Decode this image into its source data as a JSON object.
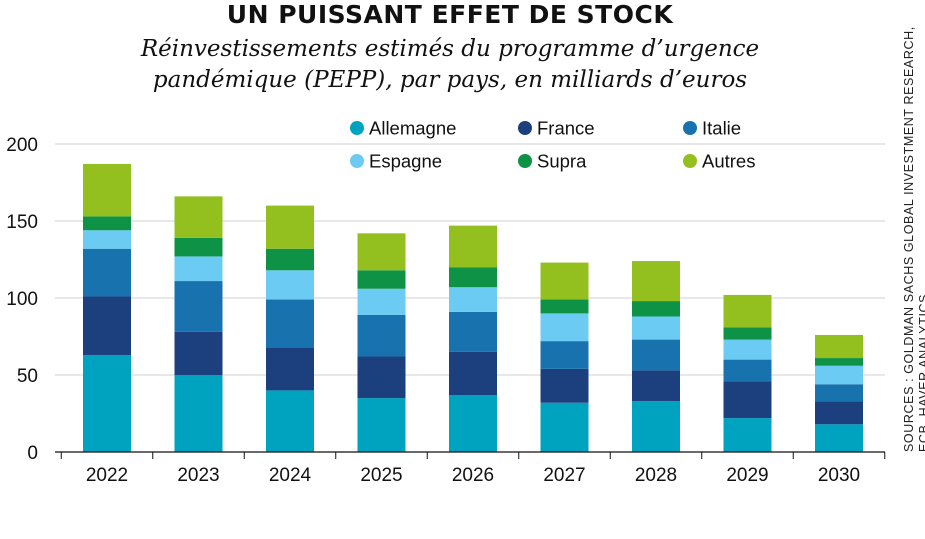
{
  "title": "UN PUISSANT EFFET DE STOCK",
  "subtitle_line1": "Réinvestissements estimés du programme d’urgence",
  "subtitle_line2": "pandémique (PEPP), par pays, en milliards d’euros",
  "source_line1": "SOURCES : GOLDMAN SACHS GLOBAL INVESTMENT RESEARCH,",
  "source_line2": "ECB, HAVER ANALYTICS",
  "chart_data": {
    "type": "bar",
    "stacked": true,
    "categories": [
      "2022",
      "2023",
      "2024",
      "2025",
      "2026",
      "2027",
      "2028",
      "2029",
      "2030"
    ],
    "ylim": [
      0,
      200
    ],
    "yticks": [
      0,
      50,
      100,
      150,
      200
    ],
    "grid": true,
    "legend_position": "top-right",
    "series": [
      {
        "name": "Allemagne",
        "color": "#00a3bf",
        "values": [
          63,
          50,
          40,
          35,
          37,
          32,
          33,
          22,
          18
        ]
      },
      {
        "name": "France",
        "color": "#1c3f7e",
        "values": [
          38,
          28,
          28,
          27,
          28,
          22,
          20,
          24,
          15
        ]
      },
      {
        "name": "Italie",
        "color": "#1772ae",
        "values": [
          31,
          33,
          31,
          27,
          26,
          18,
          20,
          14,
          11
        ]
      },
      {
        "name": "Espagne",
        "color": "#6ccbf2",
        "values": [
          12,
          16,
          19,
          17,
          16,
          18,
          15,
          13,
          12
        ]
      },
      {
        "name": "Supra",
        "color": "#0d9246",
        "values": [
          9,
          12,
          14,
          12,
          13,
          9,
          10,
          8,
          5
        ]
      },
      {
        "name": "Autres",
        "color": "#93c01f",
        "values": [
          34,
          27,
          28,
          24,
          27,
          24,
          26,
          21,
          15
        ]
      }
    ]
  }
}
